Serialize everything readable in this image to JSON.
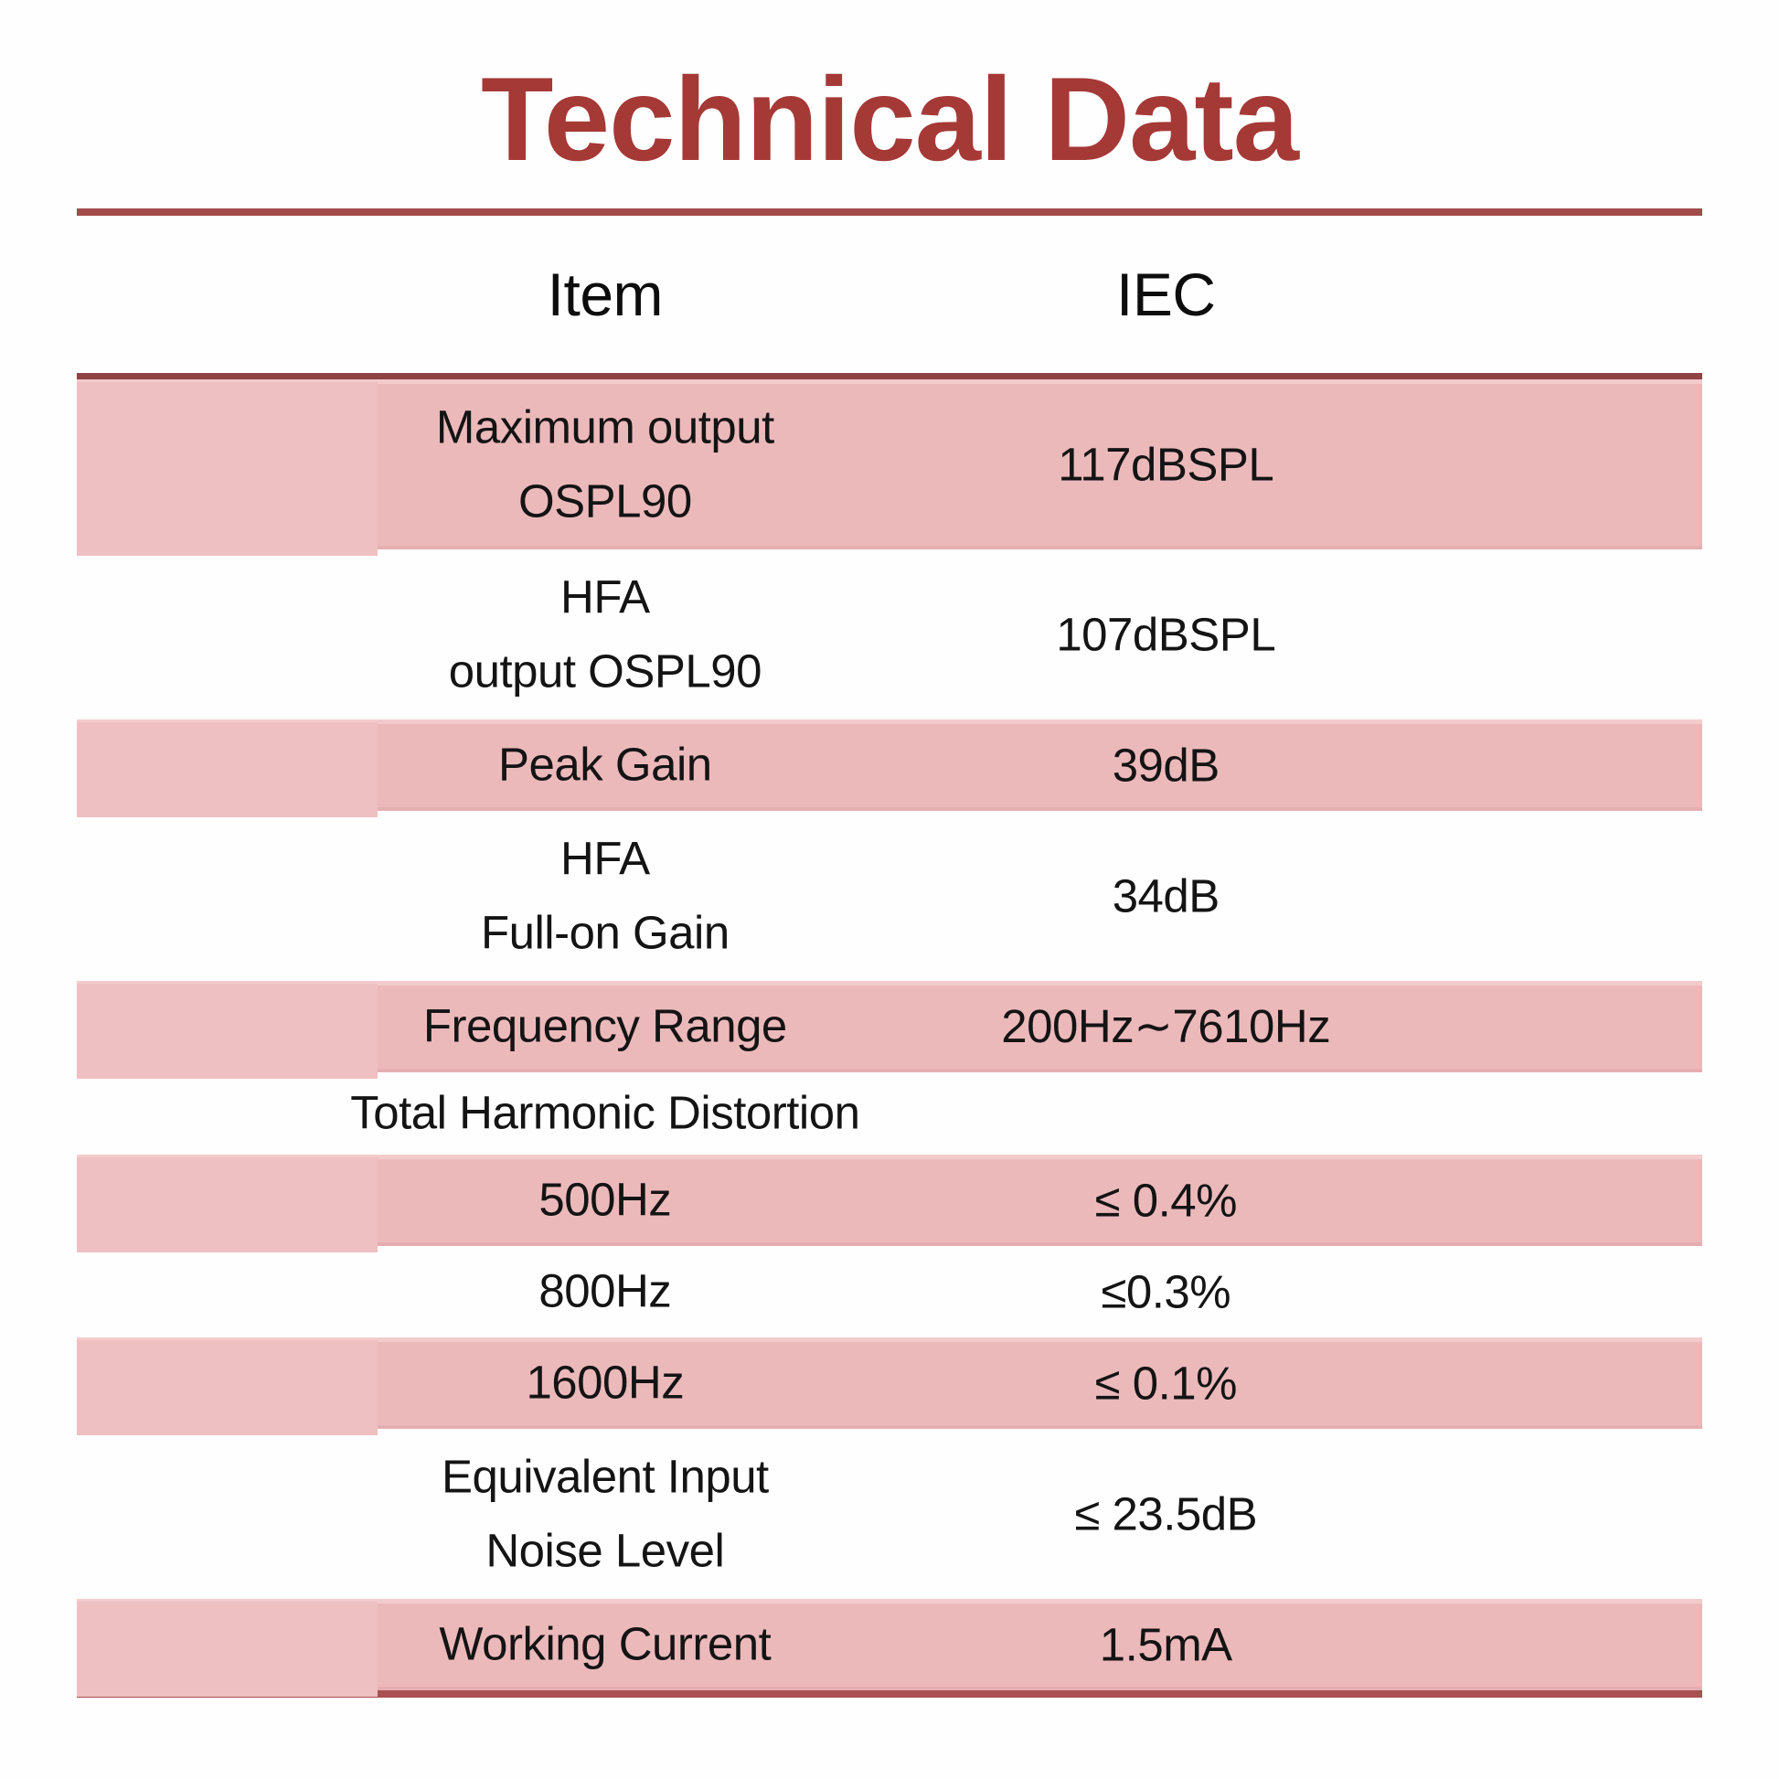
{
  "page": {
    "title": "Technical Data"
  },
  "colors": {
    "accent": "#a53936",
    "rule": "#a34b4b",
    "divider": "#8e4243",
    "stripe": "#ecb9bb",
    "bottomline": "#a95054",
    "text": "#141414"
  },
  "table": {
    "columns": {
      "item": "Item",
      "iec": "IEC"
    },
    "rows": [
      {
        "item_lines": [
          "Maximum output",
          "OSPL90"
        ],
        "value": "117dBSPL",
        "shade": "pink"
      },
      {
        "item_lines": [
          "HFA",
          "output OSPL90"
        ],
        "value": "107dBSPL",
        "shade": "white"
      },
      {
        "item_lines": [
          "Peak Gain"
        ],
        "value": "39dB",
        "shade": "pink"
      },
      {
        "item_lines": [
          "HFA",
          "Full-on Gain"
        ],
        "value": "34dB",
        "shade": "white"
      },
      {
        "item_lines": [
          "Frequency Range"
        ],
        "value": "200Hz∼7610Hz",
        "shade": "pink"
      },
      {
        "item_lines": [
          "Total Harmonic Distortion"
        ],
        "value": "",
        "shade": "white"
      },
      {
        "item_lines": [
          "500Hz"
        ],
        "value": "≤ 0.4%",
        "shade": "pink"
      },
      {
        "item_lines": [
          "800Hz"
        ],
        "value": "≤0.3%",
        "shade": "white"
      },
      {
        "item_lines": [
          "1600Hz"
        ],
        "value": "≤ 0.1%",
        "shade": "pink"
      },
      {
        "item_lines": [
          "Equivalent Input",
          "Noise Level"
        ],
        "value": "≤ 23.5dB",
        "shade": "white"
      },
      {
        "item_lines": [
          "Working Current"
        ],
        "value": "1.5mA",
        "shade": "pink"
      }
    ]
  }
}
